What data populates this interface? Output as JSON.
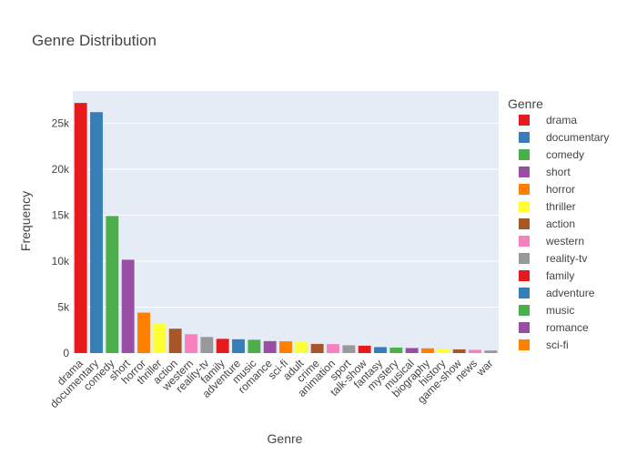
{
  "chart_data": {
    "type": "bar",
    "title": "Genre Distribution",
    "xlabel": "Genre",
    "ylabel": "Frequency",
    "ylim": [
      0,
      28500
    ],
    "yticks": [
      0,
      5000,
      10000,
      15000,
      20000,
      25000
    ],
    "ytick_labels": [
      "0",
      "5k",
      "10k",
      "15k",
      "20k",
      "25k"
    ],
    "grid": true,
    "legend": {
      "title": "Genre",
      "placement": "right"
    },
    "palette": [
      "#e41a1c",
      "#377eb8",
      "#4daf4a",
      "#984ea3",
      "#ff7f00",
      "#ffff33",
      "#a65628",
      "#f781bf",
      "#999999"
    ],
    "categories": [
      "drama",
      "documentary",
      "comedy",
      "short",
      "horror",
      "thriller",
      "action",
      "western",
      "reality-tv",
      "family",
      "adventure",
      "music",
      "romance",
      "sci-fi",
      "adult",
      "crime",
      "animation",
      "sport",
      "talk-show",
      "fantasy",
      "mystery",
      "musical",
      "biography",
      "history",
      "game-show",
      "news",
      "war"
    ],
    "values": [
      27200,
      26200,
      14900,
      10150,
      4400,
      3200,
      2650,
      2050,
      1750,
      1550,
      1500,
      1450,
      1300,
      1280,
      1200,
      1000,
      980,
      850,
      800,
      650,
      600,
      550,
      520,
      480,
      400,
      350,
      280
    ],
    "legend_entries": [
      "drama",
      "documentary",
      "comedy",
      "short",
      "horror",
      "thriller",
      "action",
      "western",
      "reality-tv",
      "family",
      "adventure",
      "music",
      "romance",
      "sci-fi"
    ]
  }
}
